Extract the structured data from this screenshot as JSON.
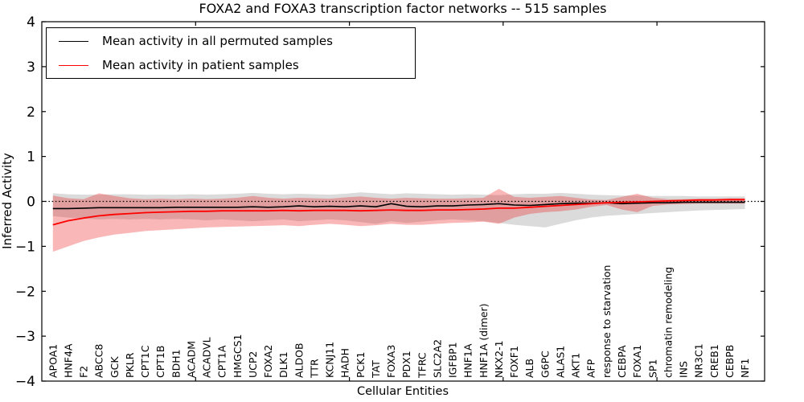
{
  "chart_data": {
    "type": "line",
    "title": "FOXA2 and FOXA3 transcription factor networks -- 515 samples",
    "xlabel": "Cellular Entities",
    "ylabel": "Inferred Activity",
    "ylim": [
      -4,
      4
    ],
    "xlim": [
      0,
      47
    ],
    "yticks": [
      -4,
      -3,
      -2,
      -1,
      0,
      1,
      2,
      3,
      4
    ],
    "xticks": [
      10,
      20,
      30,
      40
    ],
    "grid": false,
    "legend_position": "upper left",
    "reference_line": {
      "y": 0,
      "style": "dotted",
      "color": "#000000"
    },
    "categories": [
      "APOA1",
      "HNF4A",
      "F2",
      "ABCC8",
      "GCK",
      "PKLR",
      "CPT1C",
      "CPT1B",
      "BDH1",
      "ACADM",
      "ACADVL",
      "CPT1A",
      "HMGCS1",
      "UCP2",
      "FOXA2",
      "DLK1",
      "ALDOB",
      "TTR",
      "KCNJ11",
      "HADH",
      "PCK1",
      "TAT",
      "FOXA3",
      "PDX1",
      "TFRC",
      "SLC2A2",
      "IGFBP1",
      "HNF1A",
      "HNF1A (dimer)",
      "NKX2-1",
      "FOXF1",
      "ALB",
      "G6PC",
      "ALAS1",
      "AKT1",
      "AFP",
      "response to starvation",
      "CEBPA",
      "FOXA1",
      "SP1",
      "chromatin remodeling",
      "INS",
      "NR3C1",
      "CREB1",
      "CEBPB",
      "NF1"
    ],
    "series": [
      {
        "name": "Mean activity in all permuted samples",
        "color": "#000000",
        "line_width": 1.6,
        "band_fill": "rgba(125,125,125,0.28)",
        "values": [
          -0.16,
          -0.16,
          -0.15,
          -0.14,
          -0.14,
          -0.14,
          -0.14,
          -0.14,
          -0.13,
          -0.13,
          -0.13,
          -0.13,
          -0.13,
          -0.12,
          -0.13,
          -0.12,
          -0.1,
          -0.12,
          -0.11,
          -0.12,
          -0.1,
          -0.12,
          -0.05,
          -0.11,
          -0.12,
          -0.1,
          -0.1,
          -0.08,
          -0.07,
          -0.05,
          -0.08,
          -0.09,
          -0.07,
          -0.05,
          -0.04,
          -0.04,
          -0.03,
          -0.05,
          -0.04,
          -0.03,
          -0.03,
          -0.02,
          -0.02,
          -0.02,
          -0.02,
          -0.02
        ],
        "band_upper": [
          0.18,
          0.16,
          0.15,
          0.15,
          0.16,
          0.16,
          0.15,
          0.15,
          0.15,
          0.16,
          0.15,
          0.16,
          0.17,
          0.19,
          0.17,
          0.16,
          0.17,
          0.16,
          0.15,
          0.17,
          0.2,
          0.18,
          0.16,
          0.18,
          0.17,
          0.16,
          0.15,
          0.16,
          0.15,
          0.14,
          0.16,
          0.17,
          0.17,
          0.19,
          0.17,
          0.15,
          0.14,
          0.13,
          0.13,
          0.12,
          0.12,
          0.12,
          0.11,
          0.11,
          0.11,
          0.11
        ],
        "band_lower": [
          -0.33,
          -0.36,
          -0.38,
          -0.4,
          -0.39,
          -0.4,
          -0.39,
          -0.4,
          -0.39,
          -0.4,
          -0.42,
          -0.4,
          -0.42,
          -0.44,
          -0.42,
          -0.4,
          -0.44,
          -0.42,
          -0.4,
          -0.42,
          -0.46,
          -0.5,
          -0.44,
          -0.48,
          -0.45,
          -0.42,
          -0.4,
          -0.42,
          -0.44,
          -0.48,
          -0.52,
          -0.55,
          -0.58,
          -0.5,
          -0.42,
          -0.36,
          -0.32,
          -0.3,
          -0.28,
          -0.26,
          -0.24,
          -0.22,
          -0.2,
          -0.19,
          -0.18,
          -0.17
        ]
      },
      {
        "name": "Mean activity in patient samples",
        "color": "#ff0000",
        "line_width": 1.8,
        "band_fill": "rgba(235,30,30,0.32)",
        "values": [
          -0.52,
          -0.43,
          -0.37,
          -0.32,
          -0.29,
          -0.27,
          -0.25,
          -0.24,
          -0.23,
          -0.22,
          -0.22,
          -0.21,
          -0.21,
          -0.21,
          -0.21,
          -0.2,
          -0.21,
          -0.2,
          -0.2,
          -0.2,
          -0.21,
          -0.2,
          -0.19,
          -0.2,
          -0.2,
          -0.19,
          -0.19,
          -0.18,
          -0.17,
          -0.15,
          -0.15,
          -0.13,
          -0.11,
          -0.09,
          -0.07,
          -0.05,
          -0.03,
          -0.02,
          -0.01,
          0.0,
          0.01,
          0.02,
          0.03,
          0.03,
          0.04,
          0.04
        ],
        "band_upper": [
          0.13,
          0.07,
          0.05,
          0.18,
          0.12,
          0.07,
          0.05,
          0.06,
          0.05,
          0.06,
          0.05,
          0.06,
          0.08,
          0.12,
          0.08,
          0.06,
          0.08,
          0.07,
          0.06,
          0.09,
          0.11,
          0.08,
          0.06,
          0.08,
          0.07,
          0.06,
          0.06,
          0.07,
          0.08,
          0.28,
          0.1,
          0.08,
          0.1,
          0.12,
          0.08,
          0.04,
          0.03,
          0.1,
          0.17,
          0.08,
          0.05,
          0.05,
          0.06,
          0.06,
          0.07,
          0.07
        ],
        "band_lower": [
          -1.12,
          -1.0,
          -0.88,
          -0.8,
          -0.74,
          -0.7,
          -0.66,
          -0.64,
          -0.62,
          -0.6,
          -0.58,
          -0.57,
          -0.56,
          -0.55,
          -0.54,
          -0.53,
          -0.55,
          -0.52,
          -0.5,
          -0.52,
          -0.55,
          -0.53,
          -0.5,
          -0.52,
          -0.52,
          -0.5,
          -0.48,
          -0.47,
          -0.45,
          -0.5,
          -0.36,
          -0.28,
          -0.24,
          -0.22,
          -0.18,
          -0.12,
          -0.08,
          -0.18,
          -0.24,
          -0.1,
          -0.07,
          -0.06,
          -0.05,
          -0.05,
          -0.05,
          -0.05
        ]
      }
    ]
  }
}
